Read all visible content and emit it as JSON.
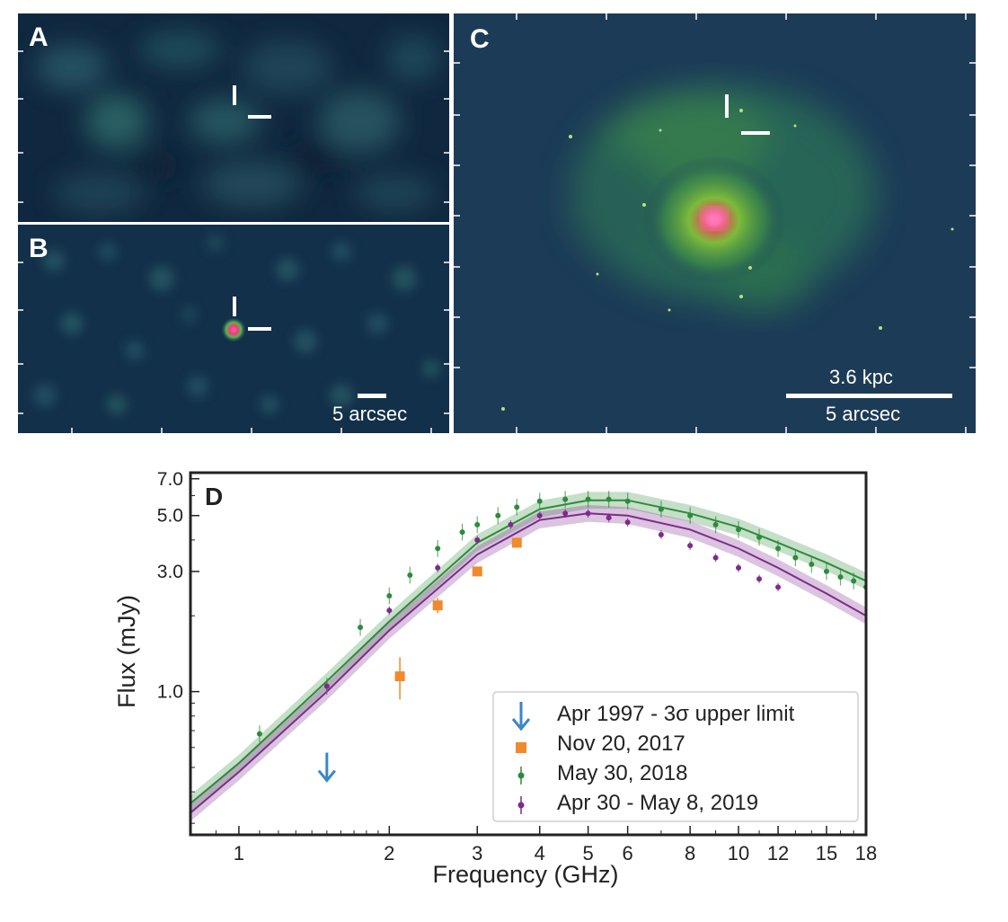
{
  "panels": {
    "a": {
      "letter": "A"
    },
    "b": {
      "letter": "B",
      "scale_label": "5 arcsec"
    },
    "c": {
      "letter": "C",
      "scale_label_top": "3.6 kpc",
      "scale_label_bottom": "5 arcsec"
    }
  },
  "colors": {
    "image_background": "#1c3b57",
    "nov2017": "#f08a2c",
    "may2018": "#2e8b3a",
    "apr2019": "#7f2a8c",
    "upper_limit": "#3a87c8"
  },
  "chart_data": {
    "type": "scatter",
    "panel_letter": "D",
    "xlabel": "Frequency (GHz)",
    "ylabel": "Flux (mJy)",
    "xscale": "log",
    "yscale": "log",
    "xlim": [
      0.8,
      18
    ],
    "ylim": [
      0.27,
      7.4
    ],
    "xticks": [
      1,
      2,
      3,
      4,
      5,
      6,
      8,
      10,
      12,
      15,
      18
    ],
    "yticks": [
      1.0,
      3.0,
      5.0,
      7.0
    ],
    "ytick_labels": [
      "1.0",
      "3.0",
      "5.0",
      "7.0"
    ],
    "legend_position": "lower-right",
    "series": [
      {
        "name": "Apr 1997 - 3σ upper limit",
        "marker": "down-arrow",
        "x": [
          1.5
        ],
        "y": [
          0.47
        ]
      },
      {
        "name": "Nov 20, 2017",
        "marker": "square",
        "x": [
          2.1,
          2.5,
          3.0,
          3.6
        ],
        "y": [
          1.15,
          2.2,
          3.0,
          3.9
        ],
        "yerr": [
          0.22,
          0.15,
          0.1,
          0.1
        ]
      },
      {
        "name": "May 30, 2018",
        "marker": "dot",
        "x": [
          1.1,
          1.5,
          1.75,
          2.0,
          2.2,
          2.5,
          2.8,
          3.0,
          3.3,
          3.6,
          4.0,
          4.5,
          5.0,
          5.5,
          6.0,
          7.0,
          8.0,
          9.0,
          10.0,
          11.0,
          12.0,
          13.0,
          14.0,
          15.0,
          16.0,
          17.0,
          18.0
        ],
        "y": [
          0.68,
          1.05,
          1.8,
          2.4,
          2.9,
          3.7,
          4.3,
          4.6,
          5.0,
          5.4,
          5.7,
          5.8,
          5.8,
          5.8,
          5.7,
          5.3,
          5.0,
          4.6,
          4.4,
          4.1,
          3.7,
          3.4,
          3.2,
          3.0,
          2.85,
          2.75,
          2.6
        ]
      },
      {
        "name": "Apr 30 - May 8, 2019",
        "marker": "dot",
        "x": [
          1.5,
          2.0,
          2.5,
          3.0,
          3.5,
          4.0,
          4.5,
          5.0,
          5.5,
          6.0,
          7.0,
          8.0,
          9.0,
          10.0,
          11.0,
          12.0
        ],
        "y": [
          1.05,
          2.1,
          3.1,
          4.0,
          4.6,
          5.0,
          5.1,
          5.1,
          4.9,
          4.7,
          4.2,
          3.8,
          3.4,
          3.1,
          2.8,
          2.6
        ]
      }
    ],
    "fits": [
      {
        "name": "May 30, 2018",
        "x": [
          0.8,
          1.0,
          1.5,
          2.0,
          3.0,
          4.0,
          5.0,
          6.0,
          8.0,
          10.0,
          12.0,
          15.0,
          18.0
        ],
        "y": [
          0.36,
          0.52,
          1.1,
          1.9,
          3.9,
          5.3,
          5.75,
          5.75,
          5.1,
          4.5,
          3.9,
          3.25,
          2.75
        ]
      },
      {
        "name": "Apr 30 - May 8, 2019",
        "x": [
          0.8,
          1.0,
          1.5,
          2.0,
          3.0,
          4.0,
          5.0,
          6.0,
          8.0,
          10.0,
          12.0,
          15.0,
          18.0
        ],
        "y": [
          0.33,
          0.48,
          1.0,
          1.75,
          3.5,
          4.8,
          5.1,
          5.0,
          4.4,
          3.7,
          3.1,
          2.45,
          2.0
        ]
      }
    ]
  }
}
